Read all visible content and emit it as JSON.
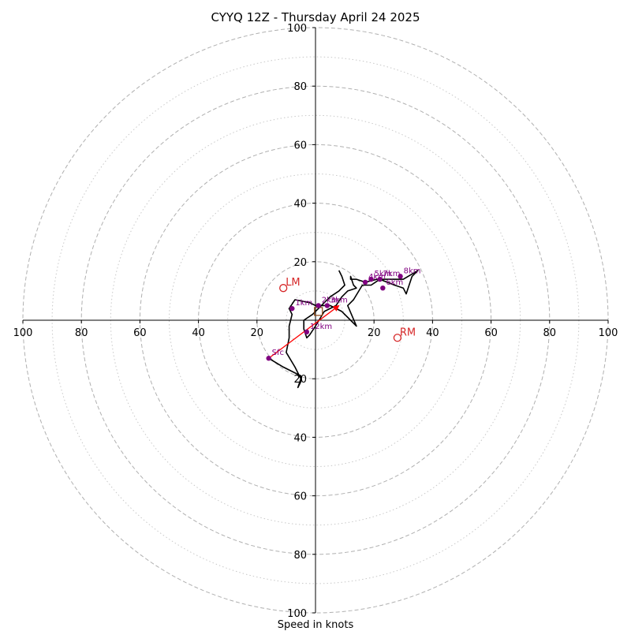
{
  "chart_data": {
    "type": "hodograph",
    "title": "CYYQ 12Z - Thursday April 24 2025",
    "xlabel": "Speed in knots",
    "max_speed": 100,
    "grid": "on",
    "major_rings": [
      20,
      40,
      60,
      80,
      100
    ],
    "minor_rings": [
      10,
      30,
      50,
      70,
      90
    ],
    "axis_ticks": [
      20,
      40,
      60,
      80,
      100
    ],
    "colors": {
      "trace": "#000000",
      "height_points": "#800080",
      "storm_motion": "#d62728",
      "shear_vector": "#ff0000",
      "grid": "#b0b0b0"
    },
    "trace": [
      [
        -16,
        -13
      ],
      [
        -11,
        -16
      ],
      [
        -5,
        -19
      ],
      [
        -5,
        -21
      ],
      [
        -6,
        -23
      ],
      [
        -5,
        -20
      ],
      [
        -7,
        -16
      ],
      [
        -10,
        -11
      ],
      [
        -9,
        -6
      ],
      [
        -9,
        -2
      ],
      [
        -8,
        2
      ],
      [
        -9,
        4
      ],
      [
        -7,
        7
      ],
      [
        -2,
        6
      ],
      [
        0,
        5
      ],
      [
        5,
        5
      ],
      [
        9,
        3
      ],
      [
        12,
        0
      ],
      [
        14,
        -2
      ],
      [
        11,
        5
      ],
      [
        13,
        7
      ],
      [
        16,
        12
      ],
      [
        19,
        12
      ],
      [
        22,
        14
      ],
      [
        27,
        12
      ],
      [
        30,
        11
      ],
      [
        31,
        9
      ],
      [
        33,
        15
      ],
      [
        35,
        17
      ],
      [
        30,
        14
      ],
      [
        26,
        14
      ],
      [
        21,
        14
      ],
      [
        17,
        13
      ],
      [
        14,
        14
      ],
      [
        12,
        14
      ],
      [
        12,
        15
      ],
      [
        13,
        12
      ],
      [
        14,
        11
      ],
      [
        11,
        10
      ],
      [
        9,
        8
      ],
      [
        7,
        5
      ],
      [
        3,
        3
      ],
      [
        0,
        -2
      ],
      [
        -2,
        -5
      ],
      [
        -3,
        -6
      ],
      [
        -4,
        -3
      ],
      [
        -4,
        0
      ],
      [
        -1,
        2
      ],
      [
        1,
        4
      ],
      [
        3,
        6
      ],
      [
        5,
        8
      ],
      [
        8,
        10
      ],
      [
        10,
        12
      ],
      [
        9,
        15
      ],
      [
        8,
        17
      ]
    ],
    "height_points": [
      {
        "label": "Sfc",
        "u": -16,
        "v": -13
      },
      {
        "label": "1km",
        "u": -8,
        "v": 4
      },
      {
        "label": "2km",
        "u": 1,
        "v": 5
      },
      {
        "label": "3km",
        "u": 4,
        "v": 5
      },
      {
        "label": "4km",
        "u": 17,
        "v": 13
      },
      {
        "label": "5km",
        "u": 19,
        "v": 14
      },
      {
        "label": "6km",
        "u": 23,
        "v": 11
      },
      {
        "label": "7km",
        "u": 22,
        "v": 14
      },
      {
        "label": "8km",
        "u": 29,
        "v": 15
      },
      {
        "label": "12km",
        "u": -3,
        "v": -4
      }
    ],
    "storm_motion": [
      {
        "label": "LM",
        "u": -11,
        "v": 11
      },
      {
        "label": "RM",
        "u": 28,
        "v": -6
      }
    ],
    "mean_wind_box": {
      "u": 1,
      "v": 3
    },
    "shear_vector": {
      "from": [
        -16,
        -13
      ],
      "to": [
        8,
        5
      ]
    }
  }
}
